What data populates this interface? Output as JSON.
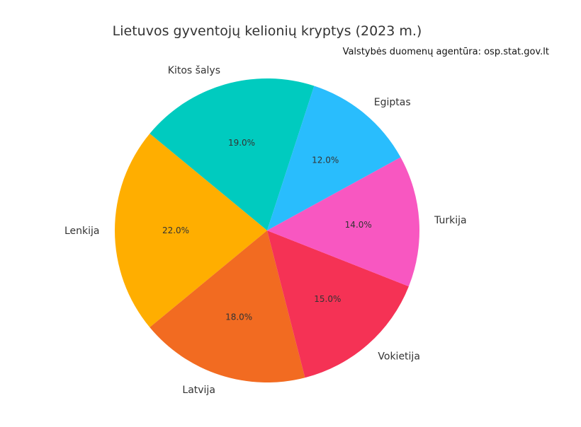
{
  "chart_data": {
    "type": "pie",
    "title": "Lietuvos gyventojų kelionių kryptys (2023 m.)",
    "subtitle": "Valstybės duomenų agentūra: osp.stat.gov.lt",
    "startangle": 72,
    "direction": "counterclockwise",
    "slices": [
      {
        "label": "Kitos šalys",
        "value": 19.0,
        "pct_label": "19.0%",
        "color": "#00CBBF"
      },
      {
        "label": "Lenkija",
        "value": 22.0,
        "pct_label": "22.0%",
        "color": "#FFAE00"
      },
      {
        "label": "Latvija",
        "value": 18.0,
        "pct_label": "18.0%",
        "color": "#F26B21"
      },
      {
        "label": "Vokietija",
        "value": 15.0,
        "pct_label": "15.0%",
        "color": "#F53255"
      },
      {
        "label": "Turkija",
        "value": 14.0,
        "pct_label": "14.0%",
        "color": "#F857C1"
      },
      {
        "label": "Egiptas",
        "value": 12.0,
        "pct_label": "12.0%",
        "color": "#29BDFD"
      }
    ]
  }
}
